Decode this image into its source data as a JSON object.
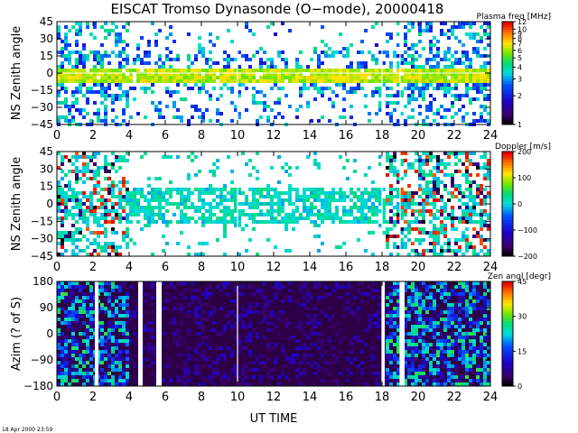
{
  "title": "EISCAT Tromso Dynasonde (O−mode),  20000418",
  "footer_timestamp": "18 Apr 2000 23:59",
  "chart_data": [
    {
      "type": "heatmap",
      "xlabel": "",
      "ylabel": "NS Zenith angle",
      "xlim": [
        0,
        24
      ],
      "ylim": [
        -45,
        45
      ],
      "xticks": [
        0,
        2,
        4,
        6,
        8,
        10,
        12,
        14,
        16,
        18,
        20,
        22,
        24
      ],
      "yticks": [
        45,
        30,
        15,
        0,
        -15,
        -30,
        -45
      ],
      "ytick_labels": [
        "45",
        "30",
        "15",
        "0",
        "−15",
        "−30",
        "−45"
      ],
      "colorbar": {
        "label": "Plasma freq [MHz]",
        "scale": "log",
        "range": [
          1,
          12
        ],
        "ticks": [
          12,
          10,
          9,
          8,
          7,
          6,
          5,
          4,
          3,
          2,
          1
        ]
      },
      "reference_lines": [
        0,
        10,
        18,
        19
      ],
      "pattern": "scatter of echoes concentrated around 0 deg zenith (yellow/green high plasma freq band near 0), blue lower values spreading to ±45 deg, sparse 4–18 UT in upper region, dense 18–24 UT"
    },
    {
      "type": "heatmap",
      "xlabel": "",
      "ylabel": "NS Zenith angle",
      "xlim": [
        0,
        24
      ],
      "ylim": [
        -45,
        45
      ],
      "xticks": [
        0,
        2,
        4,
        6,
        8,
        10,
        12,
        14,
        16,
        18,
        20,
        22,
        24
      ],
      "yticks": [
        45,
        30,
        15,
        0,
        -15,
        -30,
        -45
      ],
      "ytick_labels": [
        "45",
        "30",
        "15",
        "0",
        "−15",
        "−30",
        "−45"
      ],
      "colorbar": {
        "label": "Doppler [m/s]",
        "scale": "linear",
        "range": [
          -200,
          200
        ],
        "ticks": [
          200,
          100,
          0,
          -100,
          -200
        ],
        "tick_labels": [
          "200",
          "100",
          "0",
          "−100",
          "−200"
        ]
      },
      "reference_lines": [
        10,
        18,
        19
      ],
      "pattern": "mostly near-zero (cyan/green) Doppler around 0 deg, mixed red and dark blue/black high magnitudes 0–3 UT and 18–24 UT"
    },
    {
      "type": "heatmap",
      "xlabel": "UT TIME",
      "ylabel": "Azim (? of S)",
      "xlim": [
        0,
        24
      ],
      "ylim": [
        -180,
        180
      ],
      "xticks": [
        0,
        2,
        4,
        6,
        8,
        10,
        12,
        14,
        16,
        18,
        20,
        22,
        24
      ],
      "yticks": [
        180,
        90,
        0,
        -90,
        -180
      ],
      "ytick_labels": [
        "180",
        "90",
        "0",
        "−90",
        "−180"
      ],
      "colorbar": {
        "label": "Zen angl [degr]",
        "scale": "linear",
        "range": [
          0,
          45
        ],
        "ticks": [
          45,
          30,
          15,
          0
        ]
      },
      "reference_lines": [
        10,
        18,
        19
      ],
      "pattern": "dense dark purple background (small zenith) across full azimuth range, brighter colours 0–3 UT and 18–24 UT, white data gaps near 2, 4.5, 5.5, 18, 19 UT"
    }
  ]
}
